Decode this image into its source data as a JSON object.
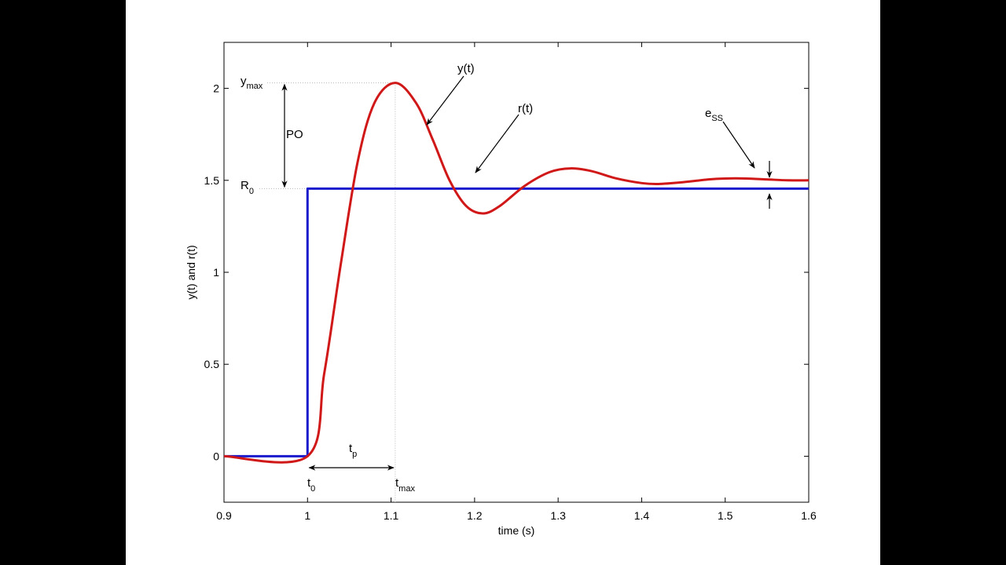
{
  "chart_data": {
    "type": "line",
    "title": "",
    "xlabel": "time (s)",
    "ylabel": "y(t) and r(t)",
    "xlim": [
      0.9,
      1.6
    ],
    "ylim": [
      -0.25,
      2.25
    ],
    "grid": false,
    "x_ticks": [
      "0.9",
      "1",
      "1.1",
      "1.2",
      "1.3",
      "1.4",
      "1.5",
      "1.6"
    ],
    "y_ticks": [
      "0",
      "0.5",
      "1",
      "1.5",
      "2"
    ],
    "series": [
      {
        "label": "y(t)",
        "color": "#d01818",
        "x": [
          0.9,
          1.0,
          1.02,
          1.04,
          1.06,
          1.08,
          1.105,
          1.13,
          1.15,
          1.17,
          1.19,
          1.21,
          1.23,
          1.26,
          1.29,
          1.315,
          1.34,
          1.37,
          1.4,
          1.42,
          1.45,
          1.48,
          1.5,
          1.525,
          1.55,
          1.575,
          1.6
        ],
        "y": [
          0.0,
          0.0,
          0.45,
          1.05,
          1.6,
          1.92,
          2.03,
          1.92,
          1.72,
          1.5,
          1.36,
          1.32,
          1.36,
          1.47,
          1.545,
          1.565,
          1.55,
          1.51,
          1.485,
          1.48,
          1.49,
          1.505,
          1.51,
          1.51,
          1.505,
          1.5,
          1.5
        ]
      },
      {
        "label": "r(t)",
        "color": "#1a1acc",
        "x": [
          0.9,
          1.0,
          1.0,
          1.6
        ],
        "y": [
          0.0,
          0.0,
          1.455,
          1.455
        ]
      }
    ],
    "annotations": {
      "y_label": "y(t)",
      "r_label": "r(t)",
      "ymax_main": "y",
      "ymax_sub": "max",
      "r0_main": "R",
      "r0_sub": "0",
      "po": "PO",
      "ess_main": "e",
      "ess_sub": "SS",
      "tp_main": "t",
      "tp_sub": "p",
      "t0_main": "t",
      "t0_sub": "0",
      "tmax_main": "t",
      "tmax_sub": "max"
    },
    "marker_values": {
      "ymax": 2.03,
      "r0": 1.455,
      "t0": 1.0,
      "tmax": 1.105
    }
  }
}
